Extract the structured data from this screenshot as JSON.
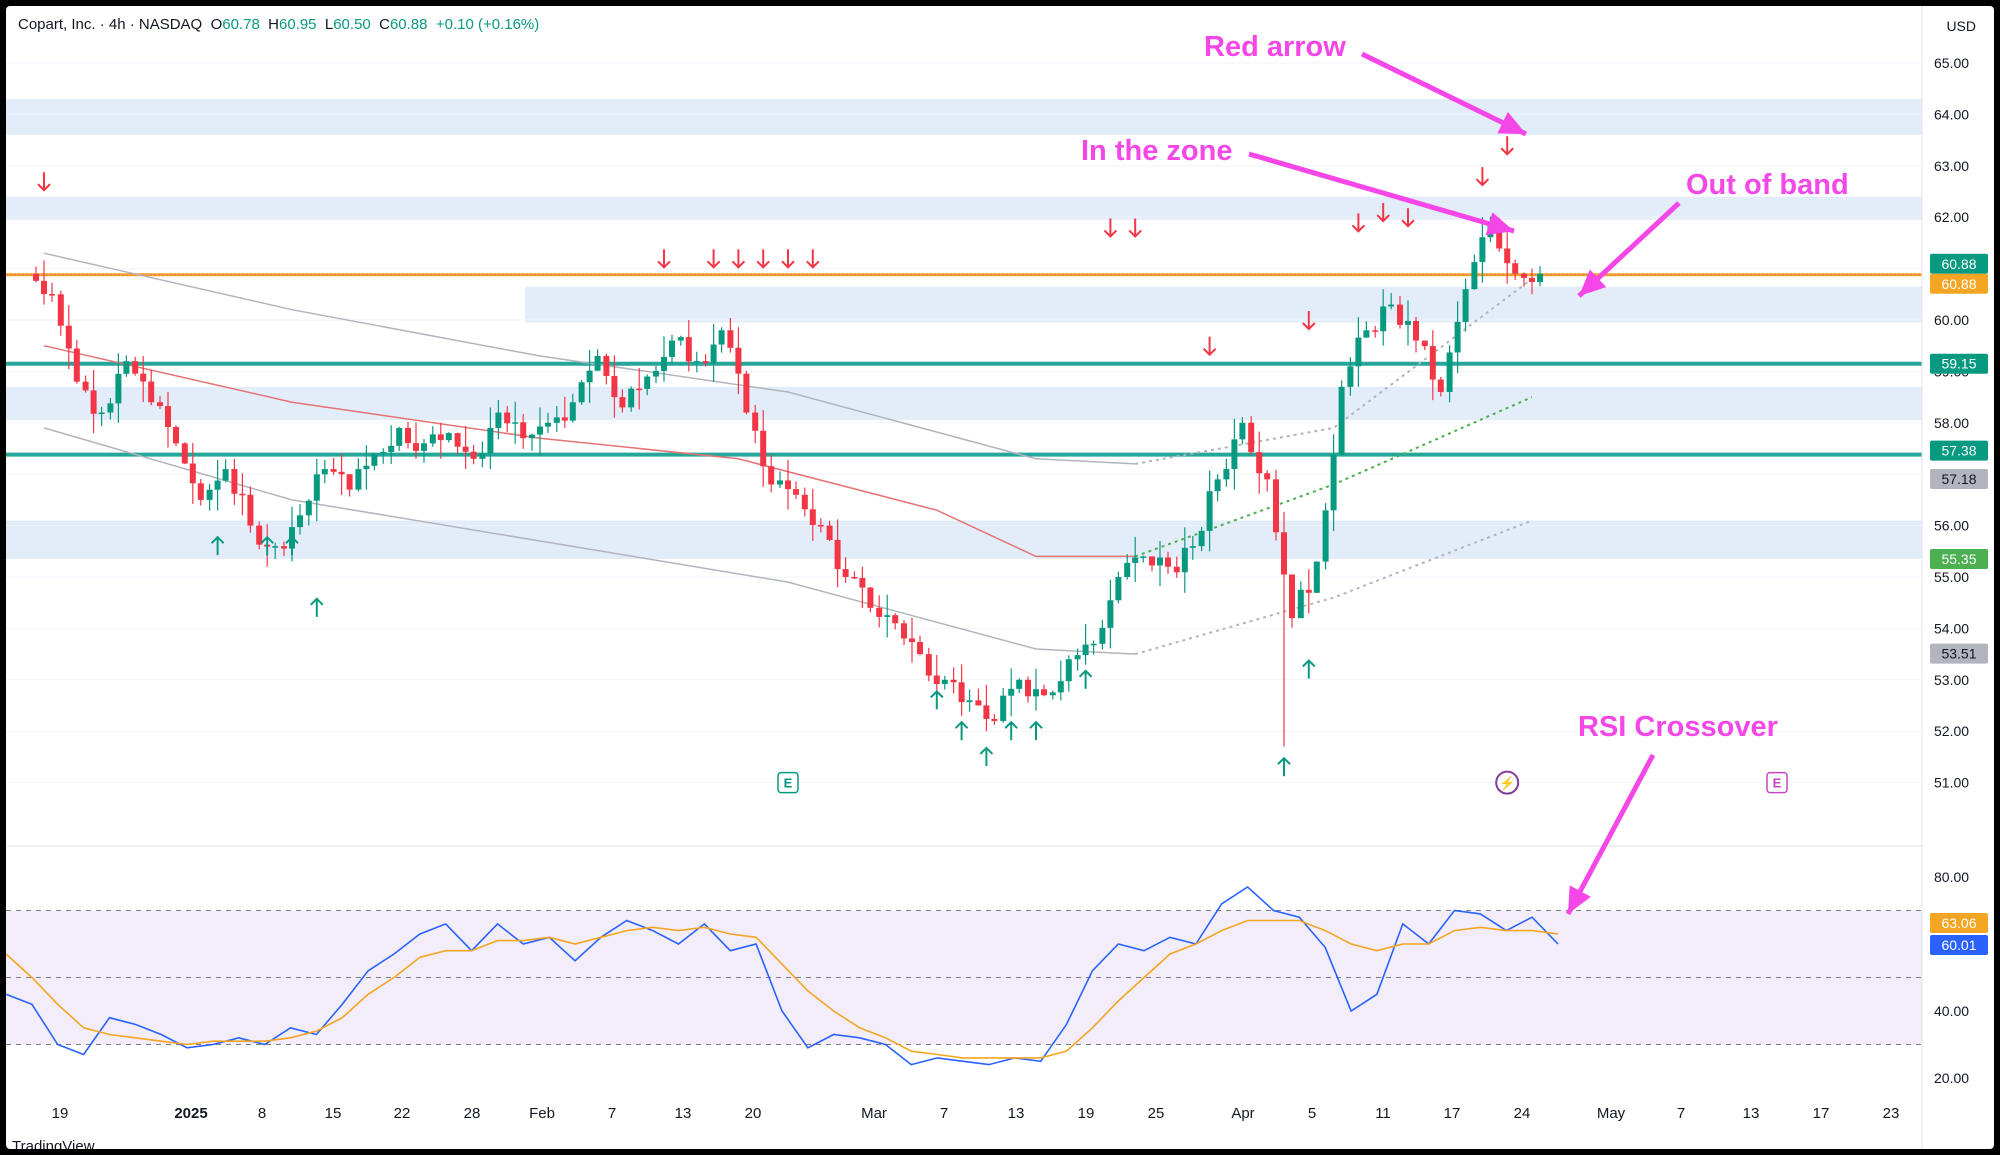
{
  "header": {
    "symbol": "Copart, Inc. · 4h · NASDAQ",
    "o_label": "O",
    "o_value": "60.78",
    "h_label": "H",
    "h_value": "60.95",
    "l_label": "L",
    "l_value": "60.50",
    "c_label": "C",
    "c_value": "60.88",
    "change": "+0.10 (+0.16%)"
  },
  "currency": "USD",
  "watermark": "TradingView",
  "chart_data": [
    {
      "type": "candlestick",
      "title": "Copart, Inc. · 4h · NASDAQ",
      "price_axis": {
        "ylim": [
          50.4,
          66.2
        ],
        "ticks": [
          "65.00",
          "64.00",
          "63.00",
          "62.00",
          "61.00",
          "60.00",
          "59.00",
          "58.00",
          "57.00",
          "56.00",
          "55.00",
          "54.00",
          "53.00",
          "52.00",
          "51.00"
        ]
      },
      "time_axis": {
        "labels": [
          "19",
          "2025",
          "8",
          "15",
          "22",
          "28",
          "Feb",
          "7",
          "13",
          "20",
          "Mar",
          "7",
          "13",
          "19",
          "25",
          "Apr",
          "5",
          "11",
          "17",
          "24",
          "May",
          "7",
          "13",
          "17",
          "23"
        ],
        "bold": [
          "2025"
        ]
      },
      "price_labels": [
        {
          "value": 60.88,
          "text": "60.88",
          "color": "#089981"
        },
        {
          "value": 60.88,
          "text": "60.88",
          "color": "#f5a524"
        },
        {
          "value": 59.15,
          "text": "59.15",
          "color": "#089981"
        },
        {
          "value": 57.38,
          "text": "57.38",
          "color": "#089981"
        },
        {
          "value": 57.18,
          "text": "57.18",
          "color": "#b2b5be"
        },
        {
          "value": 55.35,
          "text": "55.35",
          "color": "#4caf50"
        },
        {
          "value": 53.51,
          "text": "53.51",
          "color": "#b2b5be"
        }
      ],
      "horizontal_lines": [
        {
          "value": 60.88,
          "color": "#f5a524"
        },
        {
          "value": 59.15,
          "color": "#26a69a"
        },
        {
          "value": 57.38,
          "color": "#26a69a"
        }
      ],
      "zones": [
        {
          "from": 63.6,
          "to": 64.3
        },
        {
          "from": 61.95,
          "to": 62.4
        },
        {
          "from": 59.95,
          "to": 60.65
        },
        {
          "from": 58.05,
          "to": 58.7
        },
        {
          "from": 55.35,
          "to": 56.1
        }
      ],
      "candles_by_day": [
        [
          60.9,
          60.5,
          61.2,
          60.3
        ],
        [
          60.5,
          58.8,
          60.6,
          58.5
        ],
        [
          58.8,
          58.2,
          59.1,
          57.8
        ],
        [
          58.2,
          59.2,
          59.4,
          58.0
        ],
        [
          59.2,
          58.4,
          59.3,
          58.0
        ],
        [
          58.4,
          57.6,
          58.6,
          57.4
        ],
        [
          57.6,
          56.5,
          57.8,
          56.3
        ],
        [
          56.5,
          57.1,
          57.3,
          56.2
        ],
        [
          57.1,
          56.0,
          57.3,
          55.9
        ],
        [
          56.0,
          55.6,
          56.2,
          55.2
        ],
        [
          55.6,
          56.2,
          56.6,
          55.4
        ],
        [
          56.2,
          57.1,
          57.3,
          56.0
        ],
        [
          57.1,
          56.7,
          57.4,
          56.4
        ],
        [
          56.7,
          57.4,
          57.6,
          56.6
        ],
        [
          57.4,
          57.9,
          58.1,
          57.2
        ],
        [
          57.9,
          57.6,
          58.1,
          57.3
        ],
        [
          57.6,
          57.8,
          58.0,
          57.3
        ],
        [
          57.8,
          57.3,
          58.0,
          57.1
        ],
        [
          57.3,
          58.2,
          58.5,
          57.1
        ],
        [
          58.2,
          57.7,
          58.5,
          57.3
        ],
        [
          57.7,
          58.0,
          58.3,
          57.1
        ],
        [
          58.0,
          58.4,
          58.7,
          57.9
        ],
        [
          58.4,
          59.3,
          59.7,
          58.2
        ],
        [
          59.3,
          58.3,
          59.5,
          58.1
        ],
        [
          58.3,
          58.9,
          59.1,
          58.1
        ],
        [
          58.9,
          59.6,
          60.0,
          58.8
        ],
        [
          59.6,
          59.2,
          60.0,
          59.0
        ],
        [
          59.2,
          59.8,
          60.0,
          58.8
        ],
        [
          59.8,
          58.2,
          59.9,
          58.0
        ],
        [
          58.2,
          56.8,
          58.4,
          56.5
        ],
        [
          56.8,
          56.6,
          57.6,
          56.2
        ],
        [
          56.6,
          56.0,
          56.9,
          55.7
        ],
        [
          56.0,
          55.0,
          56.2,
          54.8
        ],
        [
          55.0,
          54.4,
          55.2,
          54.0
        ],
        [
          54.4,
          54.1,
          54.8,
          53.8
        ],
        [
          54.1,
          53.5,
          54.4,
          53.2
        ],
        [
          53.5,
          53.0,
          53.8,
          52.7
        ],
        [
          53.0,
          52.6,
          53.3,
          52.3
        ],
        [
          52.6,
          52.2,
          53.0,
          52.0
        ],
        [
          52.2,
          53.0,
          53.4,
          52.0
        ],
        [
          53.0,
          52.7,
          53.3,
          52.4
        ],
        [
          52.7,
          53.4,
          54.0,
          52.6
        ],
        [
          53.4,
          53.7,
          54.2,
          53.4
        ],
        [
          53.7,
          55.0,
          55.4,
          53.6
        ],
        [
          55.0,
          55.4,
          56.0,
          54.9
        ],
        [
          55.4,
          55.2,
          55.7,
          54.8
        ],
        [
          55.2,
          55.6,
          56.2,
          54.6
        ],
        [
          55.6,
          56.9,
          57.2,
          55.4
        ],
        [
          56.9,
          58.0,
          58.2,
          56.6
        ],
        [
          58.0,
          56.9,
          58.2,
          56.5
        ],
        [
          56.9,
          54.2,
          57.1,
          51.7
        ],
        [
          54.2,
          55.3,
          55.4,
          54.0
        ],
        [
          55.3,
          58.7,
          58.9,
          54.0
        ],
        [
          58.7,
          59.8,
          60.2,
          58.5
        ],
        [
          59.8,
          60.3,
          60.6,
          59.5
        ],
        [
          60.3,
          59.6,
          60.6,
          59.3
        ],
        [
          59.6,
          58.6,
          59.8,
          58.0
        ],
        [
          58.6,
          60.6,
          60.9,
          58.5
        ],
        [
          60.6,
          61.9,
          62.0,
          60.3
        ],
        [
          61.9,
          60.9,
          62.1,
          60.6
        ],
        [
          60.9,
          60.9,
          61.0,
          60.5
        ]
      ],
      "signals": {
        "down_arrows": [
          {
            "day": 0,
            "price": 62.7
          },
          {
            "day": 25,
            "price": 61.2
          },
          {
            "day": 27,
            "price": 61.2
          },
          {
            "day": 28,
            "price": 61.2
          },
          {
            "day": 29,
            "price": 61.2
          },
          {
            "day": 30,
            "price": 61.2
          },
          {
            "day": 31,
            "price": 61.2
          },
          {
            "day": 43,
            "price": 61.8
          },
          {
            "day": 44,
            "price": 61.8
          },
          {
            "day": 47,
            "price": 59.5
          },
          {
            "day": 51,
            "price": 60.0
          },
          {
            "day": 53,
            "price": 61.9
          },
          {
            "day": 54,
            "price": 62.1
          },
          {
            "day": 55,
            "price": 62.0
          },
          {
            "day": 58,
            "price": 62.8
          },
          {
            "day": 59,
            "price": 63.4
          }
        ],
        "up_arrows": [
          {
            "day": 7,
            "price": 55.6
          },
          {
            "day": 9,
            "price": 55.6
          },
          {
            "day": 10,
            "price": 55.6
          },
          {
            "day": 11,
            "price": 54.4
          },
          {
            "day": 36,
            "price": 52.6
          },
          {
            "day": 37,
            "price": 52.0
          },
          {
            "day": 38,
            "price": 51.5
          },
          {
            "day": 39,
            "price": 52.0
          },
          {
            "day": 40,
            "price": 52.0
          },
          {
            "day": 42,
            "price": 53.0
          },
          {
            "day": 50,
            "price": 51.3
          },
          {
            "day": 51,
            "price": 53.2
          }
        ]
      },
      "moving_averages": [
        {
          "name": "",
          "color": "#b2b5be",
          "points": [
            [
              0,
              61.3
            ],
            [
              10,
              60.2
            ],
            [
              20,
              59.3
            ],
            [
              30,
              58.6
            ],
            [
              40,
              57.3
            ],
            [
              44,
              57.2
            ],
            [
              52,
              57.9
            ],
            [
              60,
              60.8
            ]
          ]
        },
        {
          "name": "",
          "color": "#e57373",
          "points": [
            [
              0,
              59.5
            ],
            [
              10,
              58.4
            ],
            [
              20,
              57.7
            ],
            [
              28,
              57.3
            ],
            [
              36,
              56.3
            ],
            [
              40,
              55.4
            ],
            [
              44,
              55.4
            ],
            [
              52,
              56.8
            ],
            [
              60,
              58.5
            ]
          ]
        },
        {
          "name": "",
          "color": "#b2b5be",
          "points": [
            [
              0,
              57.9
            ],
            [
              10,
              56.5
            ],
            [
              20,
              55.7
            ],
            [
              30,
              54.9
            ],
            [
              40,
              53.6
            ],
            [
              44,
              53.5
            ],
            [
              52,
              54.6
            ],
            [
              60,
              56.1
            ]
          ]
        }
      ],
      "events": [
        {
          "day": 30,
          "type": "earnings",
          "label": "E"
        },
        {
          "day": 59,
          "type": "dividend",
          "label": "⚡"
        },
        {
          "day": 68,
          "type": "earnings",
          "label": "E"
        }
      ],
      "annotations": [
        {
          "text": "Red arrow",
          "color": "#f547e8"
        },
        {
          "text": "In the zone",
          "color": "#f547e8"
        },
        {
          "text": "Out of band",
          "color": "#f547e8"
        },
        {
          "text": "RSI Crossover",
          "color": "#f547e8"
        }
      ]
    },
    {
      "type": "line",
      "title": "RSI",
      "ylim": [
        15,
        88
      ],
      "ticks": [
        "80.00",
        "40.00",
        "20.00"
      ],
      "bands": {
        "upper": 70,
        "middle": 50,
        "lower": 30
      },
      "series": [
        {
          "name": "",
          "color": "#2962ff",
          "last_label": "60.01",
          "values": [
            45,
            42,
            30,
            27,
            38,
            36,
            33,
            29,
            30,
            32,
            30,
            35,
            33,
            42,
            52,
            57,
            63,
            66,
            58,
            66,
            60,
            62,
            55,
            62,
            67,
            64,
            60,
            66,
            58,
            60,
            40,
            29,
            33,
            32,
            30,
            24,
            26,
            25,
            24,
            26,
            25,
            36,
            52,
            60,
            58,
            62,
            60,
            72,
            77,
            70,
            68,
            59,
            40,
            45,
            66,
            60,
            70,
            69,
            64,
            68,
            60
          ]
        },
        {
          "name": "",
          "color": "#f5a524",
          "last_label": "63.06",
          "values": [
            57,
            50,
            42,
            35,
            33,
            32,
            31,
            30,
            31,
            31,
            31,
            32,
            34,
            38,
            45,
            50,
            56,
            58,
            58,
            61,
            61,
            62,
            60,
            62,
            64,
            65,
            64,
            65,
            63,
            62,
            54,
            46,
            40,
            35,
            32,
            28,
            27,
            26,
            26,
            26,
            26,
            28,
            35,
            43,
            50,
            57,
            60,
            64,
            67,
            67,
            67,
            64,
            60,
            58,
            60,
            60,
            64,
            65,
            64,
            64,
            63
          ]
        }
      ]
    }
  ]
}
